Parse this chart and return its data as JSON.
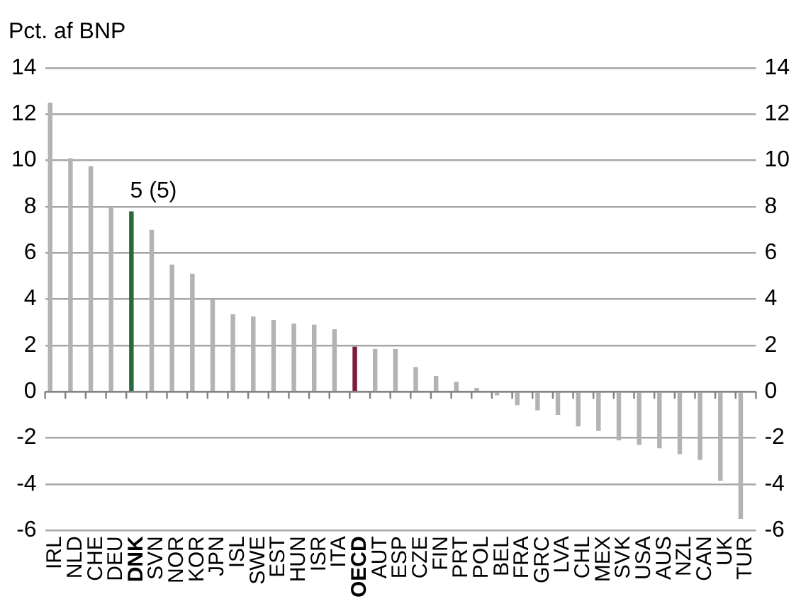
{
  "chart_data": {
    "type": "bar",
    "ylabel": "Pct. af BNP",
    "categories": [
      "IRL",
      "NLD",
      "CHE",
      "DEU",
      "DNK",
      "SVN",
      "NOR",
      "KOR",
      "JPN",
      "ISL",
      "SWE",
      "EST",
      "HUN",
      "ISR",
      "ITA",
      "OECD",
      "AUT",
      "ESP",
      "CZE",
      "FIN",
      "PRT",
      "POL",
      "BEL",
      "FRA",
      "GRC",
      "LVA",
      "CHL",
      "MEX",
      "SVK",
      "USA",
      "AUS",
      "NZL",
      "CAN",
      "UK",
      "TUR"
    ],
    "values": [
      12.5,
      10.1,
      9.75,
      8.0,
      7.8,
      7.0,
      5.5,
      5.1,
      4.0,
      3.35,
      3.25,
      3.1,
      2.95,
      2.9,
      2.7,
      1.95,
      1.85,
      1.85,
      1.07,
      0.68,
      0.43,
      0.16,
      -0.16,
      -0.58,
      -0.8,
      -1.0,
      -1.5,
      -1.7,
      -2.1,
      -2.3,
      -2.45,
      -2.7,
      -2.95,
      -3.85,
      -5.5
    ],
    "colors": [
      "#b3b3b3",
      "#b3b3b3",
      "#b3b3b3",
      "#b3b3b3",
      "#276b3c",
      "#b3b3b3",
      "#b3b3b3",
      "#b3b3b3",
      "#b3b3b3",
      "#b3b3b3",
      "#b3b3b3",
      "#b3b3b3",
      "#b3b3b3",
      "#b3b3b3",
      "#b3b3b3",
      "#7d1b3d",
      "#b3b3b3",
      "#b3b3b3",
      "#b3b3b3",
      "#b3b3b3",
      "#b3b3b3",
      "#b3b3b3",
      "#b3b3b3",
      "#b3b3b3",
      "#b3b3b3",
      "#b3b3b3",
      "#b3b3b3",
      "#b3b3b3",
      "#b3b3b3",
      "#b3b3b3",
      "#b3b3b3",
      "#b3b3b3",
      "#b3b3b3",
      "#b3b3b3",
      "#b3b3b3"
    ],
    "ylim": [
      -6,
      14
    ],
    "yticks": [
      -6,
      -4,
      -2,
      0,
      2,
      4,
      6,
      8,
      10,
      12,
      14
    ],
    "y2lim": [
      -6,
      14
    ],
    "y2ticks": [
      -6,
      -4,
      -2,
      0,
      2,
      4,
      6,
      8,
      10,
      12,
      14
    ],
    "grid": "y",
    "legend": false,
    "annotations": [
      {
        "text": "5 (5)",
        "x": "DNK",
        "y": 7.8
      }
    ]
  }
}
